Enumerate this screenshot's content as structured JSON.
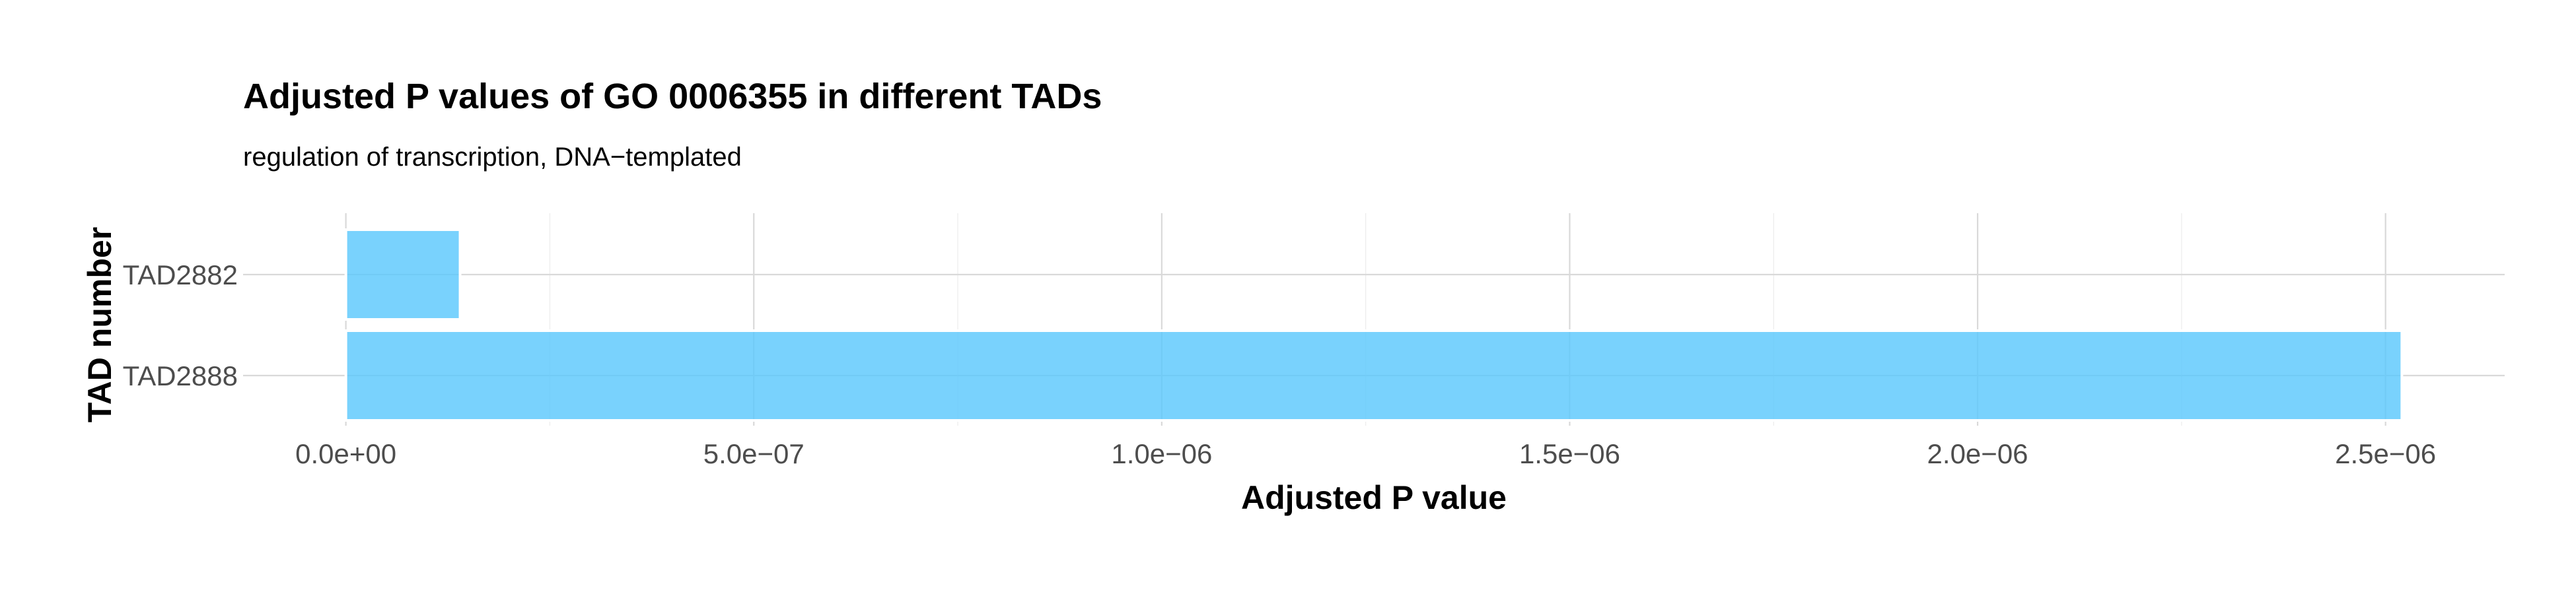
{
  "chart_data": {
    "type": "bar",
    "orientation": "horizontal",
    "title": "Adjusted P values of GO 0006355 in different TADs",
    "subtitle": "regulation of transcription, DNA−templated",
    "xlabel": "Adjusted P value",
    "ylabel": "TAD number",
    "categories": [
      "TAD2882",
      "TAD2888"
    ],
    "values": [
      1.4e-07,
      2.52e-06
    ],
    "xlim": [
      -1.26e-07,
      2.646e-06
    ],
    "x_ticks": [
      0,
      5e-07,
      1e-06,
      1.5e-06,
      2e-06,
      2.5e-06
    ],
    "x_tick_labels": [
      "0.0e+00",
      "5.0e−07",
      "1.0e−06",
      "1.5e−06",
      "2.0e−06",
      "2.5e−06"
    ],
    "x_minor_ticks": [
      2.5e-07,
      7.5e-07,
      1.25e-06,
      1.75e-06,
      2.25e-06
    ],
    "grid": true,
    "legend": "none",
    "colors": {
      "bar": "#5bc8fc"
    }
  }
}
